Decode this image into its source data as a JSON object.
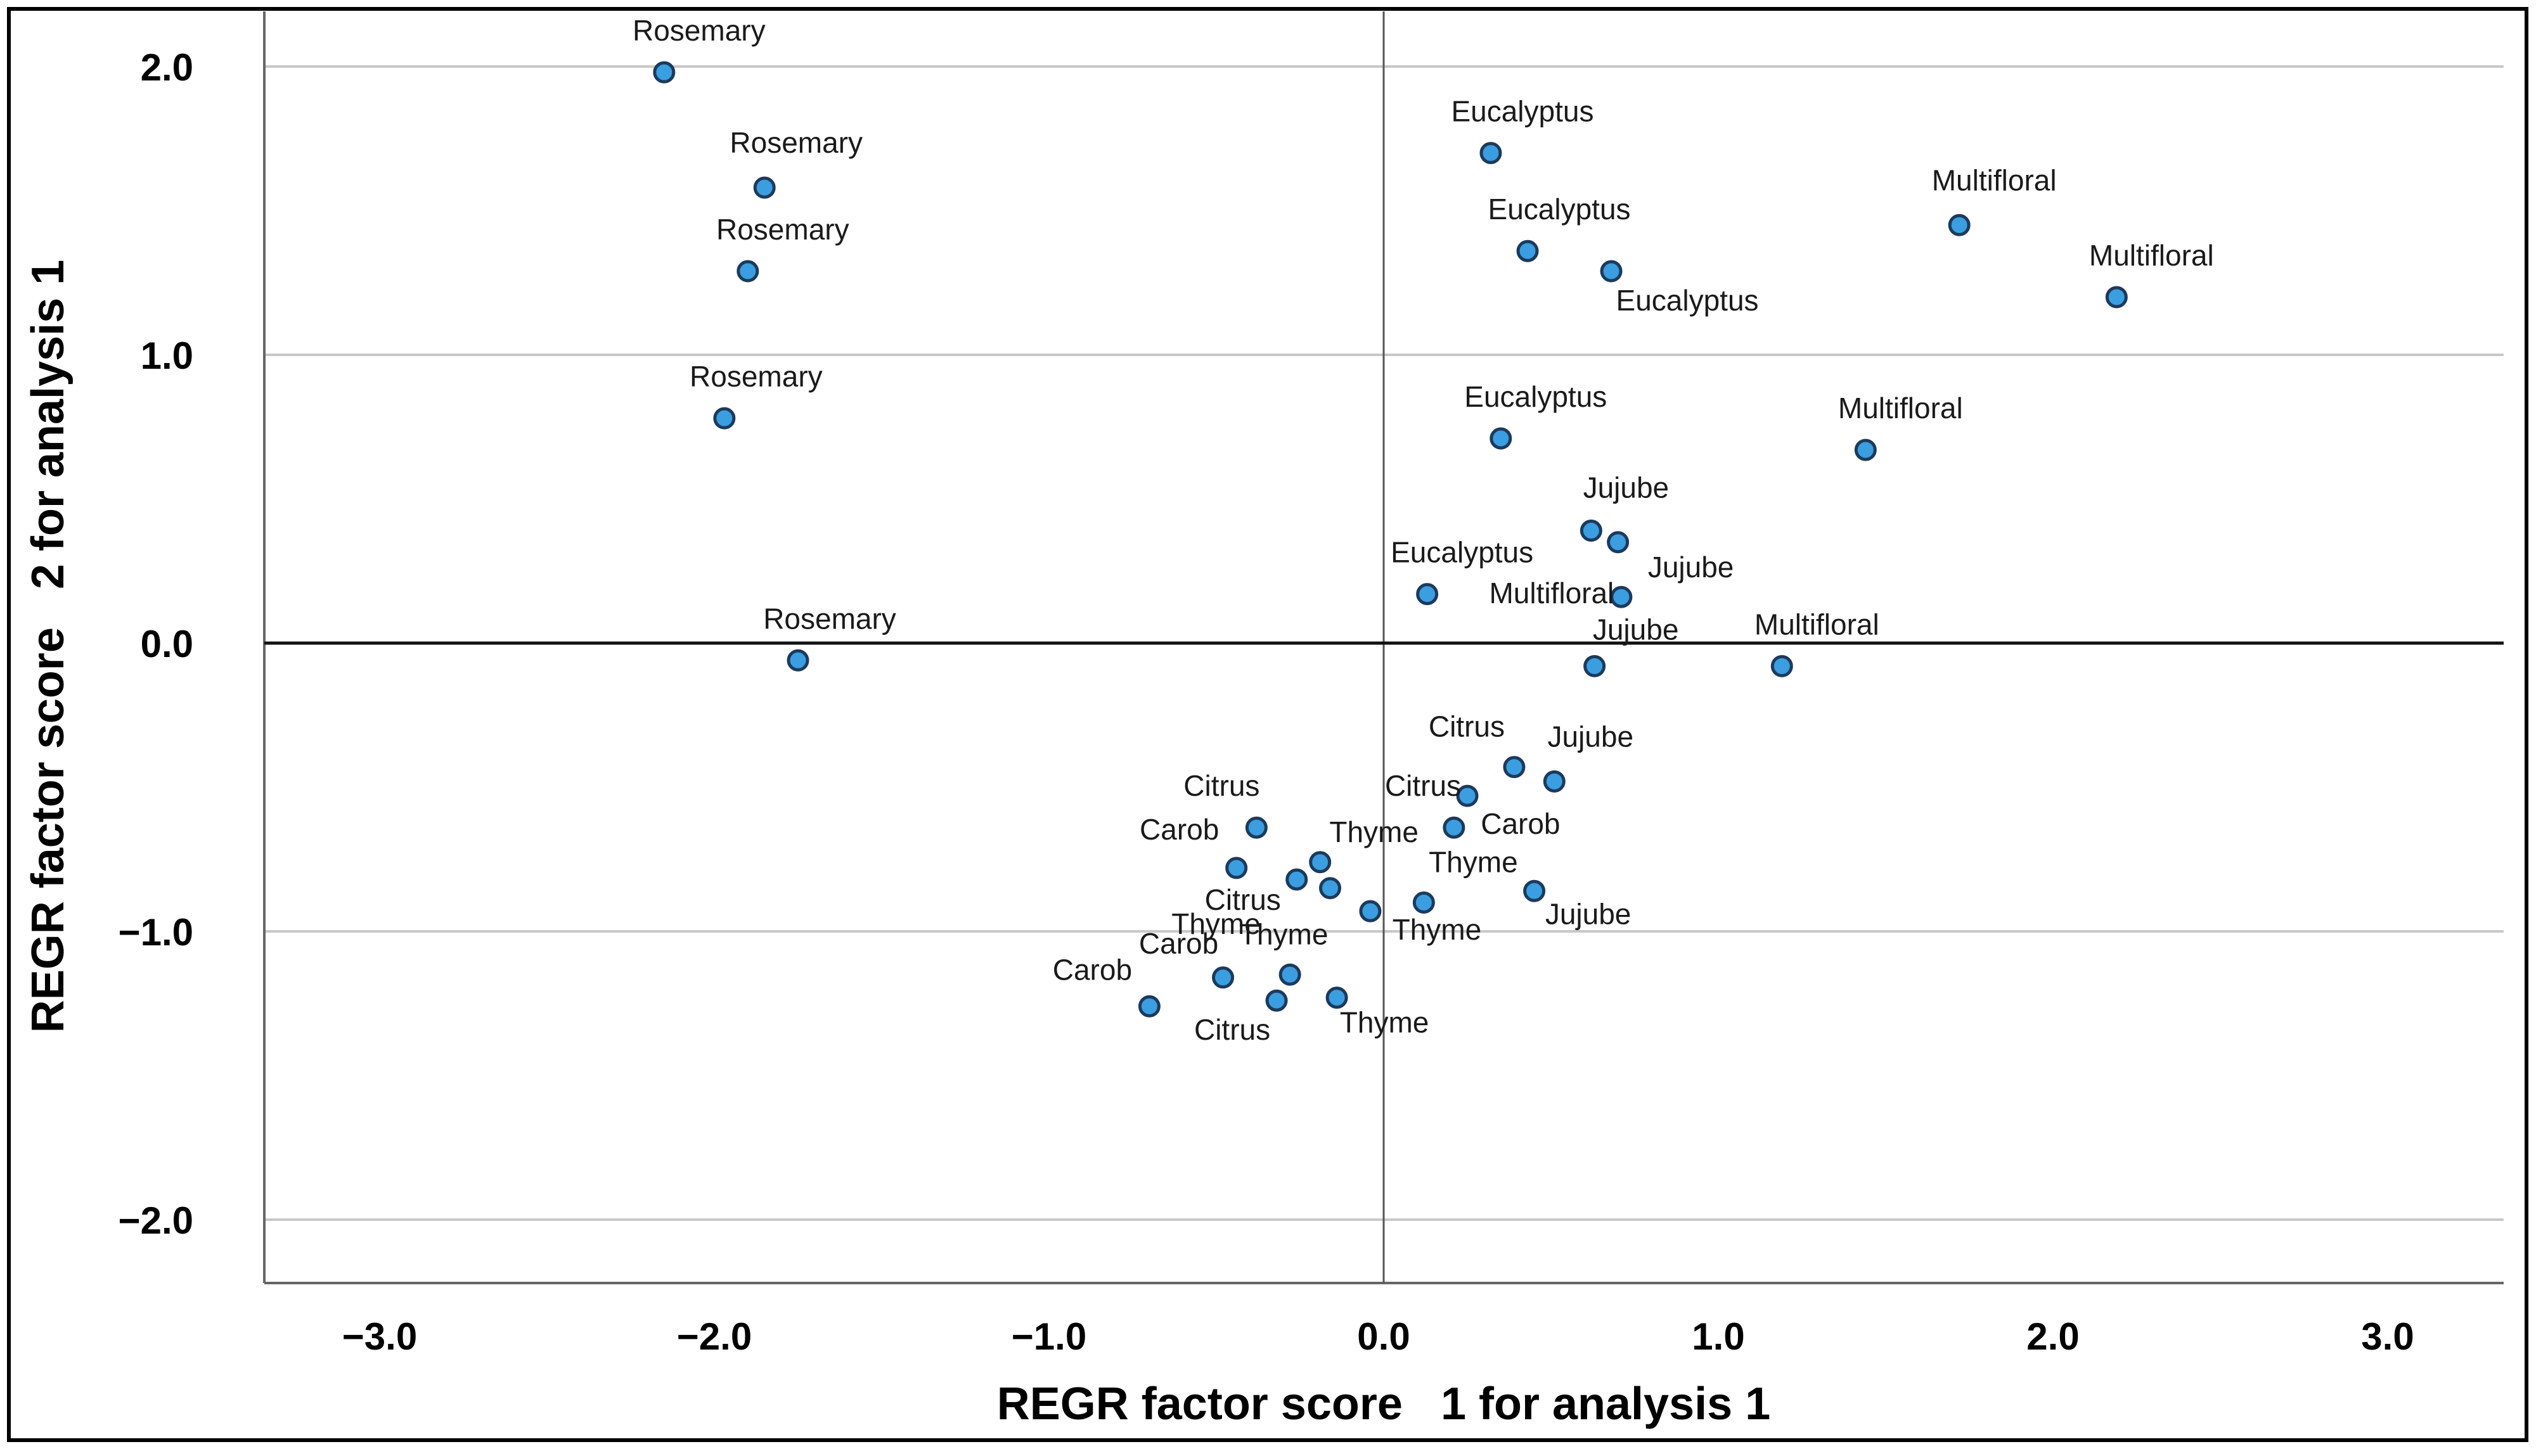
{
  "chart_data": {
    "type": "scatter",
    "title": "",
    "xlabel": "REGR factor score   1 for analysis 1",
    "ylabel": "REGR factor score   2 for analysis 1",
    "xlim": [
      -3.35,
      3.35
    ],
    "ylim": [
      -2.2,
      2.2
    ],
    "xticks": [
      -3.0,
      -2.0,
      -1.0,
      0.0,
      1.0,
      2.0,
      3.0
    ],
    "yticks": [
      2.0,
      1.0,
      0.0,
      -1.0,
      -2.0
    ],
    "xtick_labels": [
      "−3.0",
      "−2.0",
      "−1.0",
      "0.0",
      "1.0",
      "2.0",
      "3.0"
    ],
    "ytick_labels": [
      "2.0",
      "1.0",
      "0.0",
      "−1.0",
      "−2.0"
    ],
    "grid": "horizontal",
    "marker_color": "#3a9ee0",
    "marker_edge": "#1d3a5c",
    "points": [
      {
        "label": "Rosemary",
        "x": -2.15,
        "y": 1.98
      },
      {
        "label": "Rosemary",
        "x": -1.85,
        "y": 1.58
      },
      {
        "label": "Rosemary",
        "x": -1.9,
        "y": 1.29
      },
      {
        "label": "Rosemary",
        "x": -1.97,
        "y": 0.78
      },
      {
        "label": "Rosemary",
        "x": -1.75,
        "y": -0.06
      },
      {
        "label": "Eucalyptus",
        "x": 0.32,
        "y": 1.7
      },
      {
        "label": "Eucalyptus",
        "x": 0.43,
        "y": 1.36
      },
      {
        "label": "Eucalyptus",
        "x": 0.68,
        "y": 1.29
      },
      {
        "label": "Eucalyptus",
        "x": 0.35,
        "y": 0.71
      },
      {
        "label": "Eucalyptus",
        "x": 0.13,
        "y": 0.17
      },
      {
        "label": "Multifloral",
        "x": 1.72,
        "y": 1.45
      },
      {
        "label": "Multifloral",
        "x": 2.19,
        "y": 1.2
      },
      {
        "label": "Multifloral",
        "x": 1.44,
        "y": 0.67
      },
      {
        "label": "Multifloral",
        "x": 0.71,
        "y": 0.16
      },
      {
        "label": "Multifloral",
        "x": 1.19,
        "y": -0.08
      },
      {
        "label": "Jujube",
        "x": 0.62,
        "y": 0.39
      },
      {
        "label": "Jujube",
        "x": 0.7,
        "y": 0.35
      },
      {
        "label": "Jujube",
        "x": 0.63,
        "y": -0.08
      },
      {
        "label": "Jujube",
        "x": 0.51,
        "y": -0.48
      },
      {
        "label": "Jujube",
        "x": 0.45,
        "y": -0.86
      },
      {
        "label": "Citrus",
        "x": 0.39,
        "y": -0.43
      },
      {
        "label": "Citrus",
        "x": 0.25,
        "y": -0.53
      },
      {
        "label": "Citrus",
        "x": -0.38,
        "y": -0.64
      },
      {
        "label": "Citrus",
        "x": -0.26,
        "y": -0.82
      },
      {
        "label": "Citrus",
        "x": -0.32,
        "y": -1.24
      },
      {
        "label": "Carob",
        "x": 0.21,
        "y": -0.64
      },
      {
        "label": "Carob",
        "x": -0.44,
        "y": -0.78
      },
      {
        "label": "Carob",
        "x": -0.48,
        "y": -1.16
      },
      {
        "label": "Carob",
        "x": -0.7,
        "y": -1.26
      },
      {
        "label": "Thyme",
        "x": -0.19,
        "y": -0.76
      },
      {
        "label": "Thyme",
        "x": -0.16,
        "y": -0.85
      },
      {
        "label": "Thyme",
        "x": -0.04,
        "y": -0.93
      },
      {
        "label": "Thyme",
        "x": 0.12,
        "y": -0.9
      },
      {
        "label": "Thyme",
        "x": -0.28,
        "y": -1.15
      },
      {
        "label": "Thyme",
        "x": -0.14,
        "y": -1.23
      }
    ]
  }
}
